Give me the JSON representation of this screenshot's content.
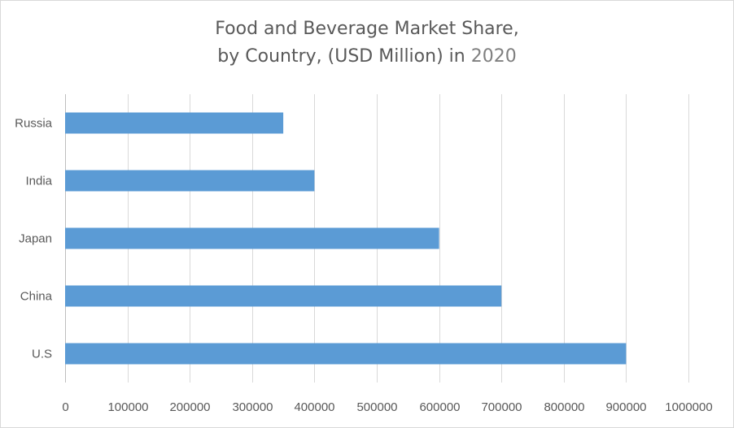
{
  "chart_data": {
    "type": "bar",
    "orientation": "horizontal",
    "title_line1": "Food and Beverage Market Share,",
    "title_line2_prefix": "by Country, (USD Million) in ",
    "title_year": "2020",
    "categories": [
      "Russia",
      "India",
      "Japan",
      "China",
      "U.S"
    ],
    "values": [
      350000,
      400000,
      600000,
      700000,
      900000
    ],
    "xlim": [
      0,
      1000000
    ],
    "x_ticks": [
      "0",
      "100000",
      "200000",
      "300000",
      "400000",
      "500000",
      "600000",
      "700000",
      "800000",
      "900000",
      "1000000"
    ],
    "grid": "vertical",
    "legend": "none",
    "bar_color": "#5b9bd5",
    "grid_color": "#d9d9d9",
    "text_color": "#595959"
  }
}
